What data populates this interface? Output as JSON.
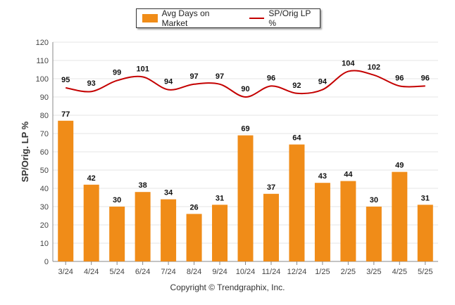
{
  "colors": {
    "bar": "#F08C18",
    "line": "#C40000",
    "grid": "#e5e5e5",
    "axis": "#888888"
  },
  "legend": {
    "bar_label": "Avg Days on Market",
    "line_label": "SP/Orig LP %"
  },
  "copyright": "Copyright © Trendgraphix, Inc.",
  "chart_data": {
    "type": "bar",
    "title": "",
    "xlabel": "",
    "ylabel": "SP/Orig. LP %",
    "ylim": [
      0,
      120
    ],
    "yticks": [
      0,
      10,
      20,
      30,
      40,
      50,
      60,
      70,
      80,
      90,
      100,
      110,
      120
    ],
    "grid": true,
    "legend_position": "top-center",
    "categories": [
      "3/24",
      "4/24",
      "5/24",
      "6/24",
      "7/24",
      "8/24",
      "9/24",
      "10/24",
      "11/24",
      "12/24",
      "1/25",
      "2/25",
      "3/25",
      "4/25",
      "5/25"
    ],
    "series": [
      {
        "name": "Avg Days on Market",
        "type": "bar",
        "values": [
          77,
          42,
          30,
          38,
          34,
          26,
          31,
          69,
          37,
          64,
          43,
          44,
          30,
          49,
          31
        ]
      },
      {
        "name": "SP/Orig LP %",
        "type": "line",
        "values": [
          95,
          93,
          99,
          101,
          94,
          97,
          97,
          90,
          96,
          92,
          94,
          104,
          102,
          96,
          96
        ]
      }
    ]
  }
}
